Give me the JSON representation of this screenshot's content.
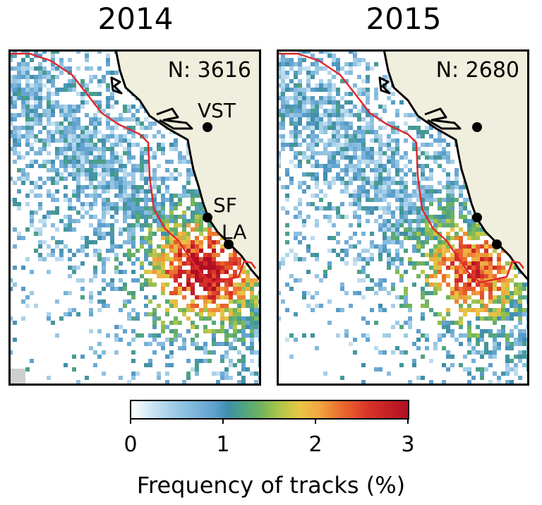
{
  "panels": [
    {
      "year": "2014",
      "count_label": "N: 3616",
      "cities": [
        {
          "name": "VST",
          "label": "VST"
        },
        {
          "name": "SF",
          "label": "SF"
        },
        {
          "name": "LA",
          "label": "LA"
        }
      ]
    },
    {
      "year": "2015",
      "count_label": "N: 2680",
      "cities": [
        {
          "name": "VST",
          "label": ""
        },
        {
          "name": "SF",
          "label": ""
        },
        {
          "name": "LA",
          "label": ""
        }
      ]
    }
  ],
  "colorbar": {
    "label": "Frequency of tracks (%)",
    "ticks": [
      "0",
      "1",
      "2",
      "3"
    ],
    "min": 0,
    "max": 3
  },
  "colors": {
    "land": "#f0eedc",
    "coast": "#000000",
    "boundary": "#e0282e",
    "ocean": "#ffffff"
  }
}
